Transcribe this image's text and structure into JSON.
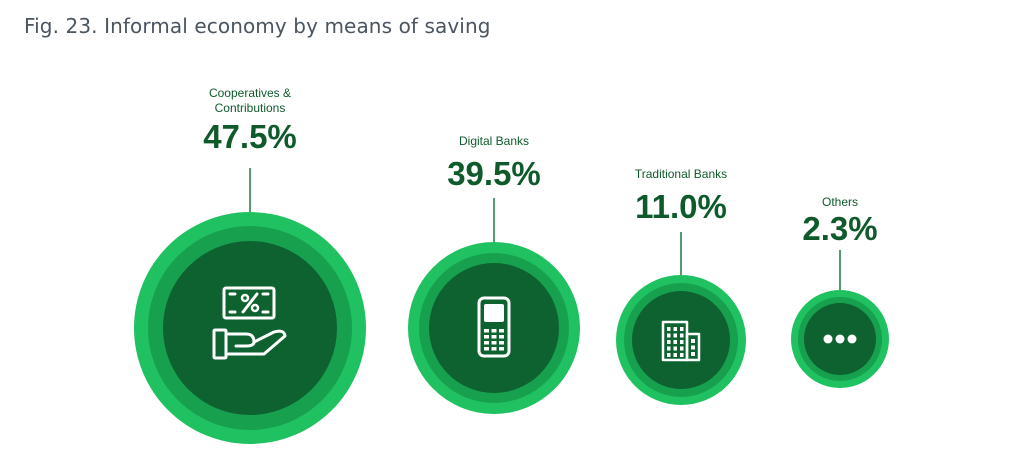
{
  "title": "Fig. 23. Informal economy by means of saving",
  "colors": {
    "outer_ring": "#1fc160",
    "middle_ring": "#17a14f",
    "inner_core": "#0d6230",
    "text": "#0f5a2b",
    "icon": "#ffffff",
    "connector": "#1a7a3e"
  },
  "chart_data": {
    "type": "bubble",
    "title": "Fig. 23. Informal economy by means of saving",
    "unit": "%",
    "items": [
      {
        "label_lines": [
          "Cooperatives &",
          "Contributions"
        ],
        "value": 47.5,
        "display": "47.5%",
        "icon": "money-hand-icon"
      },
      {
        "label_lines": [
          "Digital Banks"
        ],
        "value": 39.5,
        "display": "39.5%",
        "icon": "mobile-phone-icon"
      },
      {
        "label_lines": [
          "Traditional Banks"
        ],
        "value": 11.0,
        "display": "11.0%",
        "icon": "building-icon"
      },
      {
        "label_lines": [
          "Others"
        ],
        "value": 2.3,
        "display": "2.3%",
        "icon": "more-dots-icon"
      }
    ]
  }
}
